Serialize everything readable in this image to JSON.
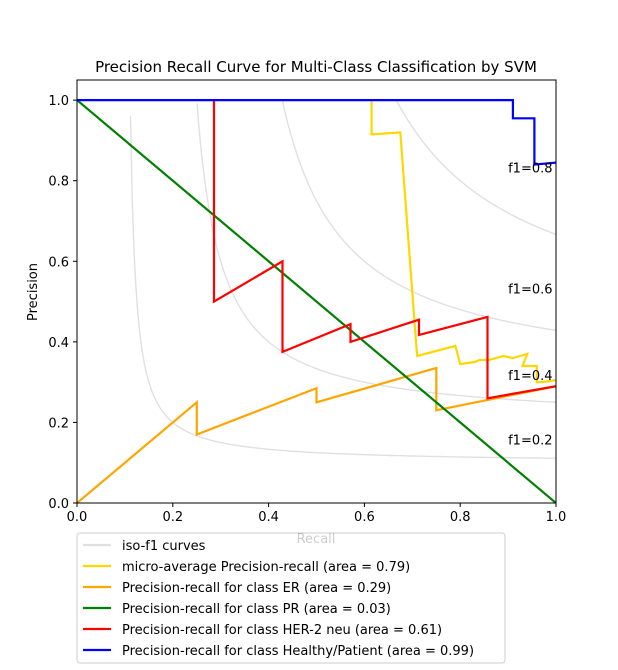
{
  "chart_data": {
    "type": "line",
    "title": "Precision Recall Curve for Multi-Class Classification by SVM",
    "xlabel": "Recall",
    "ylabel": "Precision",
    "xlim": [
      0.0,
      1.0
    ],
    "ylim": [
      0.0,
      1.05
    ],
    "xticks": [
      "0.0",
      "0.2",
      "0.4",
      "0.6",
      "0.8",
      "1.0"
    ],
    "yticks": [
      "0.0",
      "0.2",
      "0.4",
      "0.6",
      "0.8",
      "1.0"
    ],
    "grid": false,
    "legend_position": "below plot, left",
    "iso_f1": {
      "legend_label": "iso-f1 curves",
      "color": "#e0e0e0",
      "values": [
        0.2,
        0.4,
        0.6,
        0.8
      ],
      "labels": [
        "f1=0.2",
        "f1=0.4",
        "f1=0.6",
        "f1=0.8"
      ]
    },
    "series": [
      {
        "name": "micro-average Precision-recall (area = 0.79)",
        "color": "#ffd700",
        "x": [
          1.0,
          0.97,
          0.96,
          0.96,
          0.93,
          0.94,
          0.91,
          0.89,
          0.86,
          0.84,
          0.83,
          0.83,
          0.8,
          0.79,
          0.79,
          0.71,
          0.71,
          0.675,
          0.675,
          0.615,
          0.615
        ],
        "y": [
          0.305,
          0.3,
          0.3,
          0.34,
          0.34,
          0.37,
          0.36,
          0.365,
          0.355,
          0.355,
          0.35,
          0.35,
          0.345,
          0.39,
          0.39,
          0.365,
          0.365,
          0.92,
          0.92,
          0.915,
          1.0
        ]
      },
      {
        "name": "Precision-recall for class ER (area = 0.29)",
        "color": "#ffa500",
        "x": [
          0.0,
          0.25,
          0.25,
          0.5,
          0.5,
          0.75,
          0.75,
          1.0
        ],
        "y": [
          0.0,
          0.25,
          0.17,
          0.285,
          0.25,
          0.335,
          0.23,
          0.29
        ]
      },
      {
        "name": "Precision-recall for class PR (area = 0.03)",
        "color": "#008000",
        "x": [
          0.0,
          1.0
        ],
        "y": [
          1.0,
          0.0
        ]
      },
      {
        "name": "Precision-recall for class HER-2 neu (area = 0.61)",
        "color": "#ff0000",
        "x": [
          0.286,
          0.286,
          0.429,
          0.429,
          0.571,
          0.571,
          0.714,
          0.714,
          0.857,
          0.857,
          1.0
        ],
        "y": [
          1.0,
          0.5,
          0.6,
          0.375,
          0.444,
          0.4,
          0.455,
          0.417,
          0.462,
          0.26,
          0.29
        ]
      },
      {
        "name": "Precision-recall for class Healthy/Patient (area = 0.99)",
        "color": "#0000ff",
        "x": [
          0.0,
          0.91,
          0.91,
          0.955,
          0.955,
          1.0
        ],
        "y": [
          1.0,
          1.0,
          0.955,
          0.955,
          0.84,
          0.845
        ]
      }
    ]
  }
}
